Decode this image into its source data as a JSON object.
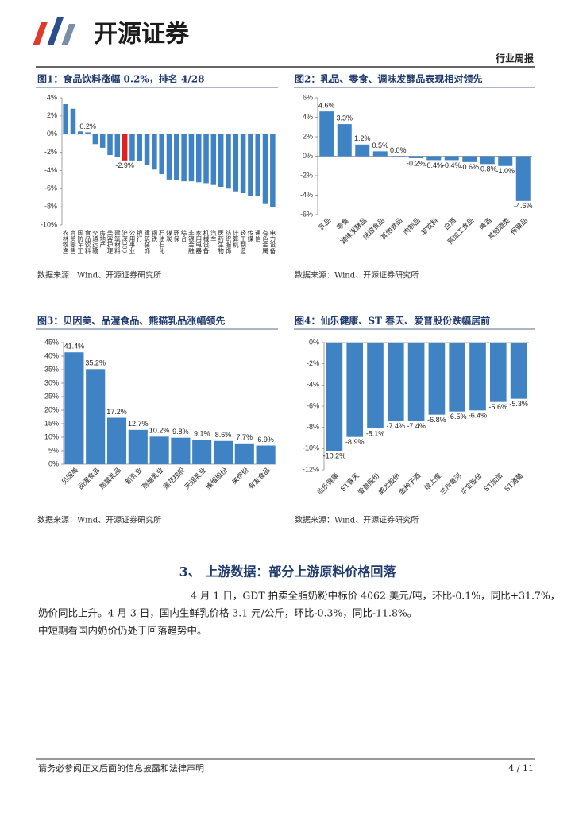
{
  "header": {
    "brand": "开源证券",
    "tag": "行业周报"
  },
  "chart_data": [
    {
      "type": "bar",
      "title": "图1：食品饮料涨幅 0.2%，排名 4/28",
      "source": "数据来源：Wind、开源证券研究所",
      "categories": [
        "农林牧渔",
        "商贸零售",
        "国防军工",
        "食品饮料",
        "交通运输",
        "房地产",
        "美容护理",
        "建筑材料",
        "沪深300",
        "公用事业",
        "银行",
        "建筑装饰",
        "钢铁",
        "石油石化",
        "煤炭",
        "环保",
        "综合",
        "非银金融",
        "家用电器",
        "机械设备",
        "汽车",
        "医药生物",
        "纺织服饰",
        "计算机",
        "轻工制造",
        "传媒",
        "通信",
        "有色金属",
        "电力设备"
      ],
      "values": [
        3.3,
        2.8,
        0.3,
        0.2,
        -1.1,
        -1.5,
        -2.3,
        -2.5,
        -2.9,
        -2.9,
        -3.0,
        -3.4,
        -3.9,
        -4.4,
        -5.0,
        -5.1,
        -5.2,
        -5.2,
        -5.3,
        -5.4,
        -5.6,
        -5.8,
        -6.0,
        -6.3,
        -6.5,
        -6.8,
        -6.8,
        -7.7,
        -8.0
      ],
      "value_labels": [
        null,
        null,
        null,
        "0.2%",
        null,
        null,
        null,
        null,
        "-2.9%",
        null,
        null,
        null,
        null,
        null,
        null,
        null,
        null,
        null,
        null,
        null,
        null,
        null,
        null,
        null,
        null,
        null,
        null,
        null,
        null
      ],
      "colors": [
        "#3f83c4",
        "#3f83c4",
        "#3f83c4",
        "#3f83c4",
        "#3f83c4",
        "#3f83c4",
        "#3f83c4",
        "#3f83c4",
        "#e02020",
        "#3f83c4",
        "#3f83c4",
        "#3f83c4",
        "#3f83c4",
        "#3f83c4",
        "#3f83c4",
        "#3f83c4",
        "#3f83c4",
        "#3f83c4",
        "#3f83c4",
        "#3f83c4",
        "#3f83c4",
        "#3f83c4",
        "#3f83c4",
        "#3f83c4",
        "#3f83c4",
        "#3f83c4",
        "#3f83c4",
        "#3f83c4",
        "#3f83c4"
      ],
      "ylim": [
        -10,
        4
      ],
      "yticks": [
        {
          "value": -10,
          "label": "-10%"
        },
        {
          "value": -8,
          "label": "-8%"
        },
        {
          "value": -6,
          "label": "-6%"
        },
        {
          "value": -4,
          "label": "-4%"
        },
        {
          "value": -2,
          "label": "-2%"
        },
        {
          "value": 0,
          "label": "0%"
        },
        {
          "value": 2,
          "label": "2%"
        },
        {
          "value": 4,
          "label": "4%"
        }
      ]
    },
    {
      "type": "bar",
      "title": "图2：乳品、零食、调味发酵品表现相对领先",
      "source": "数据来源：Wind、开源证券研究所",
      "color": "#3f83c4",
      "categories": [
        "乳品",
        "零食",
        "调味发酵品",
        "烘焙食品",
        "其他食品",
        "肉制品",
        "软饮料",
        "白酒",
        "预加工食品",
        "啤酒",
        "其他酒类",
        "保健品"
      ],
      "values": [
        4.6,
        3.3,
        1.2,
        0.5,
        0.0,
        -0.2,
        -0.4,
        -0.4,
        -0.6,
        -0.8,
        -1.0,
        -4.6
      ],
      "value_labels": [
        "4.6%",
        "3.3%",
        "1.2%",
        "0.5%",
        "0.0%",
        "-0.2%",
        "-0.4%",
        "-0.4%",
        "-0.6%",
        "-0.8%",
        "-1.0%",
        "-4.6%"
      ],
      "ylim": [
        -6,
        6
      ],
      "yticks": [
        {
          "value": -6,
          "label": "-6%"
        },
        {
          "value": -4,
          "label": "-4%"
        },
        {
          "value": -2,
          "label": "-2%"
        },
        {
          "value": 0,
          "label": "0%"
        },
        {
          "value": 2,
          "label": "2%"
        },
        {
          "value": 4,
          "label": "4%"
        },
        {
          "value": 6,
          "label": "6%"
        }
      ]
    },
    {
      "type": "bar",
      "title": "图3：贝因美、品渥食品、熊猫乳品涨幅领先",
      "source": "数据来源：Wind、开源证券研究所",
      "color": "#3f83c4",
      "categories": [
        "贝因美",
        "品渥食品",
        "熊猫乳品",
        "新乳业",
        "燕塘乳业",
        "莲花控股",
        "天润乳业",
        "维维股份",
        "来伊份",
        "有友食品"
      ],
      "values": [
        41.4,
        35.2,
        17.2,
        12.7,
        10.2,
        9.8,
        9.1,
        8.6,
        7.7,
        6.9
      ],
      "value_labels": [
        "41.4%",
        "35.2%",
        "17.2%",
        "12.7%",
        "10.2%",
        "9.8%",
        "9.1%",
        "8.6%",
        "7.7%",
        "6.9%"
      ],
      "ylim": [
        0,
        45
      ],
      "yticks": [
        {
          "value": 0,
          "label": "0%"
        },
        {
          "value": 5,
          "label": "5%"
        },
        {
          "value": 10,
          "label": "10%"
        },
        {
          "value": 15,
          "label": "15%"
        },
        {
          "value": 20,
          "label": "20%"
        },
        {
          "value": 25,
          "label": "25%"
        },
        {
          "value": 30,
          "label": "30%"
        },
        {
          "value": 35,
          "label": "35%"
        },
        {
          "value": 40,
          "label": "40%"
        },
        {
          "value": 45,
          "label": "45%"
        }
      ]
    },
    {
      "type": "bar",
      "title": "图4：仙乐健康、ST 春天、爱普股份跌幅居前",
      "source": "数据来源：Wind、开源证券研究所",
      "color": "#3f83c4",
      "categories": [
        "仙乐健康",
        "ST春天",
        "爱普股份",
        "威龙股份",
        "金种子酒",
        "煌上煌",
        "兰州黄河",
        "华宝股份",
        "ST加加",
        "ST通葡"
      ],
      "values": [
        -10.2,
        -8.9,
        -8.1,
        -7.4,
        -7.4,
        -6.8,
        -6.5,
        -6.4,
        -5.6,
        -5.3
      ],
      "value_labels": [
        "-10.2%",
        "-8.9%",
        "-8.1%",
        "-7.4%",
        "-7.4%",
        "-6.8%",
        "-6.5%",
        "-6.4%",
        "-5.6%",
        "-5.3%"
      ],
      "ylim": [
        -12,
        0
      ],
      "yticks": [
        {
          "value": -12,
          "label": "-12%"
        },
        {
          "value": -10,
          "label": "-10%"
        },
        {
          "value": -8,
          "label": "-8%"
        },
        {
          "value": -6,
          "label": "-6%"
        },
        {
          "value": -4,
          "label": "-4%"
        },
        {
          "value": -2,
          "label": "-2%"
        },
        {
          "value": 0,
          "label": "0%"
        }
      ]
    }
  ],
  "section": {
    "title": "3、 上游数据：部分上游原料价格回落",
    "lines": [
      "4 月 1 日，GDT 拍卖全脂奶粉中标价 4062 美元/吨，环比-0.1%，同比+31.7%，",
      "奶价同比上升。4 月 3 日，国内生鲜乳价格 3.1 元/公斤，环比-0.3%，同比-11.8%。",
      "中短期看国内奶价仍处于回落趋势中。"
    ]
  },
  "footer": {
    "disclaimer": "请务必参阅正文后面的信息披露和法律声明",
    "page": "4 / 11"
  }
}
